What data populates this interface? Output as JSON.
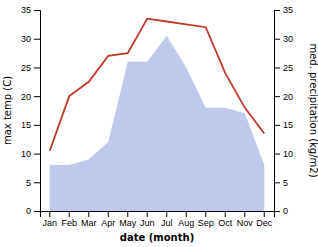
{
  "chart_data": {
    "type": "line",
    "xlabel": "date (month)",
    "ylabel": "max temp (C)",
    "y2label": "med. precipitation (kg/m2)",
    "categories": [
      "Jan",
      "Feb",
      "Mar",
      "Apr",
      "May",
      "Jun",
      "Jul",
      "Aug",
      "Sep",
      "Oct",
      "Nov",
      "Dec"
    ],
    "series": [
      {
        "type": "area",
        "color": "#b8c4e8",
        "axis": "y2",
        "values": [
          8,
          8,
          9,
          12,
          26,
          26,
          30.5,
          25,
          18,
          18,
          17,
          8
        ]
      },
      {
        "type": "line",
        "color": "#c0392b",
        "values": [
          10.5,
          20.0,
          22.5,
          27.0,
          27.5,
          33.5,
          33.0,
          32.5,
          32.0,
          24.0,
          18.0,
          13.5
        ]
      }
    ],
    "ylim": [
      0,
      35
    ],
    "yticks": [
      0,
      5,
      10,
      15,
      20,
      25,
      30,
      35
    ],
    "y2lim": [
      0,
      35
    ],
    "y2ticks": [
      0,
      5,
      10,
      15,
      20,
      25,
      30,
      35
    ],
    "grid": false
  }
}
